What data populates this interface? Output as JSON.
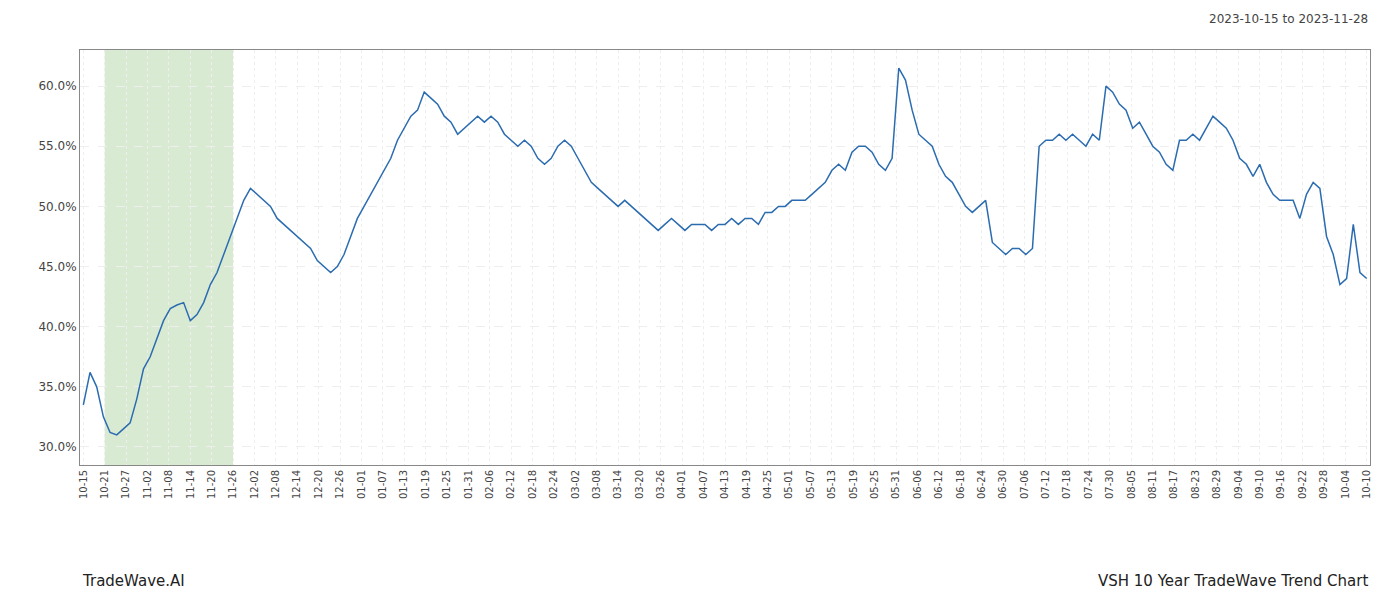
{
  "chart_data": {
    "type": "line",
    "title": "VSH 10 Year TradeWave Trend Chart",
    "subtitle": "2023-10-15 to 2023-11-28",
    "annotations": [
      "TradeWave.AI"
    ],
    "color": "#2b6cb0",
    "grid": true,
    "xlim": [
      -0.5,
      192.5
    ],
    "xticks": [
      {
        "value": 0,
        "label": "10-15"
      },
      {
        "value": 3.2,
        "label": "10-21"
      },
      {
        "value": 6.4,
        "label": "10-27"
      },
      {
        "value": 9.6,
        "label": "11-02"
      },
      {
        "value": 12.8,
        "label": "11-08"
      },
      {
        "value": 16,
        "label": "11-14"
      },
      {
        "value": 19.2,
        "label": "11-20"
      },
      {
        "value": 22.4,
        "label": "11-26"
      },
      {
        "value": 25.6,
        "label": "12-02"
      },
      {
        "value": 28.8,
        "label": "12-08"
      },
      {
        "value": 32,
        "label": "12-14"
      },
      {
        "value": 35.2,
        "label": "12-20"
      },
      {
        "value": 38.4,
        "label": "12-26"
      },
      {
        "value": 41.6,
        "label": "01-01"
      },
      {
        "value": 44.8,
        "label": "01-07"
      },
      {
        "value": 48,
        "label": "01-13"
      },
      {
        "value": 51.2,
        "label": "01-19"
      },
      {
        "value": 54.4,
        "label": "01-25"
      },
      {
        "value": 57.6,
        "label": "01-31"
      },
      {
        "value": 60.8,
        "label": "02-06"
      },
      {
        "value": 64,
        "label": "02-12"
      },
      {
        "value": 67.2,
        "label": "02-18"
      },
      {
        "value": 70.4,
        "label": "02-24"
      },
      {
        "value": 73.6,
        "label": "03-02"
      },
      {
        "value": 76.8,
        "label": "03-08"
      },
      {
        "value": 80,
        "label": "03-14"
      },
      {
        "value": 83.2,
        "label": "03-20"
      },
      {
        "value": 86.4,
        "label": "03-26"
      },
      {
        "value": 89.6,
        "label": "04-01"
      },
      {
        "value": 92.8,
        "label": "04-07"
      },
      {
        "value": 96,
        "label": "04-13"
      },
      {
        "value": 99.2,
        "label": "04-19"
      },
      {
        "value": 102.4,
        "label": "04-25"
      },
      {
        "value": 105.6,
        "label": "05-01"
      },
      {
        "value": 108.8,
        "label": "05-07"
      },
      {
        "value": 112,
        "label": "05-13"
      },
      {
        "value": 115.2,
        "label": "05-19"
      },
      {
        "value": 118.4,
        "label": "05-25"
      },
      {
        "value": 121.6,
        "label": "05-31"
      },
      {
        "value": 124.8,
        "label": "06-06"
      },
      {
        "value": 128,
        "label": "06-12"
      },
      {
        "value": 131.2,
        "label": "06-18"
      },
      {
        "value": 134.4,
        "label": "06-24"
      },
      {
        "value": 137.6,
        "label": "06-30"
      },
      {
        "value": 140.8,
        "label": "07-06"
      },
      {
        "value": 144,
        "label": "07-12"
      },
      {
        "value": 147.2,
        "label": "07-18"
      },
      {
        "value": 150.4,
        "label": "07-24"
      },
      {
        "value": 153.6,
        "label": "07-30"
      },
      {
        "value": 156.8,
        "label": "08-05"
      },
      {
        "value": 160,
        "label": "08-11"
      },
      {
        "value": 163.2,
        "label": "08-17"
      },
      {
        "value": 166.4,
        "label": "08-23"
      },
      {
        "value": 169.6,
        "label": "08-29"
      },
      {
        "value": 172.8,
        "label": "09-04"
      },
      {
        "value": 176,
        "label": "09-10"
      },
      {
        "value": 179.2,
        "label": "09-16"
      },
      {
        "value": 182.4,
        "label": "09-22"
      },
      {
        "value": 185.6,
        "label": "09-28"
      },
      {
        "value": 188.8,
        "label": "10-04"
      },
      {
        "value": 192,
        "label": "10-10"
      }
    ],
    "spans": [
      {
        "x0": 3.2,
        "x1": 22.4,
        "color": "#d9ead3"
      }
    ],
    "ylim": [
      28.5,
      63.0
    ],
    "yticks": [
      {
        "value": 30,
        "label": "30.0%"
      },
      {
        "value": 35,
        "label": "35.0%"
      },
      {
        "value": 40,
        "label": "40.0%"
      },
      {
        "value": 45,
        "label": "45.0%"
      },
      {
        "value": 50,
        "label": "50.0%"
      },
      {
        "value": 55,
        "label": "55.0%"
      },
      {
        "value": 60,
        "label": "60.0%"
      }
    ],
    "values": [
      33.5,
      36.2,
      35.0,
      32.5,
      31.2,
      31.0,
      31.5,
      32.0,
      34.0,
      36.5,
      37.5,
      39.0,
      40.5,
      41.5,
      41.8,
      42.0,
      40.5,
      41.0,
      42.0,
      43.5,
      44.5,
      46.0,
      47.5,
      49.0,
      50.5,
      51.5,
      51.0,
      50.5,
      50.0,
      49.0,
      48.5,
      48.0,
      47.5,
      47.0,
      46.5,
      45.5,
      45.0,
      44.5,
      45.0,
      46.0,
      47.5,
      49.0,
      50.0,
      51.0,
      52.0,
      53.0,
      54.0,
      55.5,
      56.5,
      57.5,
      58.0,
      59.5,
      59.0,
      58.5,
      57.5,
      57.0,
      56.0,
      56.5,
      57.0,
      57.5,
      57.0,
      57.5,
      57.0,
      56.0,
      55.5,
      55.0,
      55.5,
      55.0,
      54.0,
      53.5,
      54.0,
      55.0,
      55.5,
      55.0,
      54.0,
      53.0,
      52.0,
      51.5,
      51.0,
      50.5,
      50.0,
      50.5,
      50.0,
      49.5,
      49.0,
      48.5,
      48.0,
      48.5,
      49.0,
      48.5,
      48.0,
      48.5,
      48.5,
      48.5,
      48.0,
      48.5,
      48.5,
      49.0,
      48.5,
      49.0,
      49.0,
      48.5,
      49.5,
      49.5,
      50.0,
      50.0,
      50.5,
      50.5,
      50.5,
      51.0,
      51.5,
      52.0,
      53.0,
      53.5,
      53.0,
      54.5,
      55.0,
      55.0,
      54.5,
      53.5,
      53.0,
      54.0,
      61.5,
      60.5,
      58.0,
      56.0,
      55.5,
      55.0,
      53.5,
      52.5,
      52.0,
      51.0,
      50.0,
      49.5,
      50.0,
      50.5,
      47.0,
      46.5,
      46.0,
      46.5,
      46.5,
      46.0,
      46.5,
      55.0,
      55.5,
      55.5,
      56.0,
      55.5,
      56.0,
      55.5,
      55.0,
      56.0,
      55.5,
      60.0,
      59.5,
      58.5,
      58.0,
      56.5,
      57.0,
      56.0,
      55.0,
      54.5,
      53.5,
      53.0,
      55.5,
      55.5,
      56.0,
      55.5,
      56.5,
      57.5,
      57.0,
      56.5,
      55.5,
      54.0,
      53.5,
      52.5,
      53.5,
      52.0,
      51.0,
      50.5,
      50.5,
      50.5,
      49.0,
      51.0,
      52.0,
      51.5,
      47.5,
      46.0,
      43.5,
      44.0,
      48.5,
      44.5,
      44.0
    ]
  }
}
